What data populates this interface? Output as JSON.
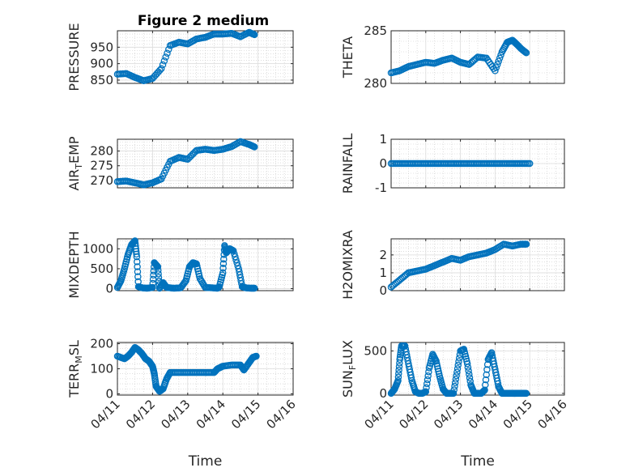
{
  "figure": {
    "title": "Figure 2 medium",
    "background": "#ffffff",
    "marker_color": "#0072bd"
  },
  "chart_data": [
    {
      "name": "pressure",
      "type": "scatter",
      "ylabel": "PRESSURE",
      "ylim": [
        840,
        1000
      ],
      "yticks": [
        850,
        900,
        950
      ],
      "xlim": [
        0,
        5
      ],
      "xticks": [
        0,
        1,
        2,
        3,
        4,
        5
      ],
      "xticklabels": [
        "04/11",
        "04/12",
        "04/13",
        "04/14",
        "04/15",
        "04/16"
      ],
      "xlabel": "",
      "show_xticklabels": false,
      "title": "Figure 2 medium",
      "series": [
        {
          "name": "PRESSURE",
          "x": [
            0,
            0.25,
            0.5,
            0.75,
            1,
            1.25,
            1.5,
            1.75,
            2,
            2.25,
            2.5,
            2.75,
            3,
            3.25,
            3.5,
            3.75,
            3.9
          ],
          "y": [
            868,
            870,
            858,
            848,
            855,
            885,
            955,
            965,
            960,
            975,
            980,
            990,
            990,
            992,
            982,
            995,
            988
          ]
        }
      ]
    },
    {
      "name": "theta",
      "type": "scatter",
      "ylabel": "THETA",
      "ylim": [
        280,
        285
      ],
      "yticks": [
        280,
        285
      ],
      "xlim": [
        0,
        5
      ],
      "xticks": [
        0,
        1,
        2,
        3,
        4,
        5
      ],
      "xticklabels": [
        "04/11",
        "04/12",
        "04/13",
        "04/14",
        "04/15",
        "04/16"
      ],
      "xlabel": "",
      "show_xticklabels": false,
      "series": [
        {
          "name": "THETA",
          "x": [
            0,
            0.25,
            0.5,
            0.75,
            1,
            1.25,
            1.5,
            1.75,
            2,
            2.25,
            2.5,
            2.75,
            3,
            3.2,
            3.35,
            3.5,
            3.6,
            3.75,
            3.9
          ],
          "y": [
            281,
            281.2,
            281.6,
            281.8,
            282,
            281.9,
            282.2,
            282.4,
            282,
            281.8,
            282.5,
            282.4,
            281.2,
            283,
            283.9,
            284.1,
            283.8,
            283.3,
            282.9
          ]
        }
      ]
    },
    {
      "name": "air_temp",
      "type": "scatter",
      "ylabel": "AIR_TEMP",
      "ylim": [
        267.5,
        284
      ],
      "yticks": [
        270,
        275,
        280
      ],
      "xlim": [
        0,
        5
      ],
      "xticks": [
        0,
        1,
        2,
        3,
        4,
        5
      ],
      "xticklabels": [
        "04/11",
        "04/12",
        "04/13",
        "04/14",
        "04/15",
        "04/16"
      ],
      "xlabel": "",
      "show_xticklabels": false,
      "series": [
        {
          "name": "AIR_TEMP",
          "x": [
            0,
            0.25,
            0.5,
            0.75,
            1,
            1.25,
            1.5,
            1.75,
            2,
            2.25,
            2.5,
            2.75,
            3,
            3.25,
            3.5,
            3.75,
            3.9
          ],
          "y": [
            269.6,
            269.8,
            269.2,
            268.5,
            269.2,
            270.5,
            276.5,
            277.8,
            277.2,
            280.2,
            280.6,
            280.2,
            280.6,
            281.5,
            283.2,
            282.2,
            281.4
          ]
        }
      ]
    },
    {
      "name": "rainfall",
      "type": "scatter",
      "ylabel": "RAINFALL",
      "ylim": [
        -1,
        1
      ],
      "yticks": [
        -1,
        0,
        1
      ],
      "xlim": [
        0,
        5
      ],
      "xticks": [
        0,
        1,
        2,
        3,
        4,
        5
      ],
      "xticklabels": [
        "04/11",
        "04/12",
        "04/13",
        "04/14",
        "04/15",
        "04/16"
      ],
      "xlabel": "",
      "show_xticklabels": false,
      "series": [
        {
          "name": "RAINFALL",
          "x": [
            0,
            0.25,
            0.5,
            0.75,
            1,
            1.25,
            1.5,
            1.75,
            2,
            2.25,
            2.5,
            2.75,
            3,
            3.25,
            3.5,
            3.75,
            4
          ],
          "y": [
            0,
            0,
            0,
            0,
            0,
            0,
            0,
            0,
            0,
            0,
            0,
            0,
            0,
            0,
            0,
            0,
            0
          ]
        }
      ]
    },
    {
      "name": "mixdepth",
      "type": "scatter",
      "ylabel": "MIXDEPTH",
      "ylim": [
        -50,
        1250
      ],
      "yticks": [
        0,
        500,
        1000
      ],
      "xlim": [
        0,
        5
      ],
      "xticks": [
        0,
        1,
        2,
        3,
        4,
        5
      ],
      "xticklabels": [
        "04/11",
        "04/12",
        "04/13",
        "04/14",
        "04/15",
        "04/16"
      ],
      "xlabel": "",
      "show_xticklabels": false,
      "series": [
        {
          "name": "MIXDEPTH",
          "x": [
            0,
            0.1,
            0.2,
            0.3,
            0.4,
            0.5,
            0.55,
            0.6,
            0.7,
            0.85,
            1,
            1.05,
            1.15,
            1.2,
            1.3,
            1.4,
            1.6,
            1.8,
            1.95,
            2.05,
            2.15,
            2.25,
            2.35,
            2.5,
            2.7,
            2.85,
            2.9,
            3,
            3.05,
            3.1,
            3.2,
            3.3,
            3.45,
            3.55,
            3.65,
            3.8,
            3.9
          ],
          "y": [
            30,
            200,
            500,
            850,
            1100,
            1200,
            800,
            50,
            20,
            10,
            30,
            650,
            550,
            10,
            150,
            30,
            10,
            20,
            200,
            550,
            650,
            620,
            250,
            30,
            20,
            10,
            50,
            400,
            1080,
            900,
            1000,
            950,
            500,
            50,
            20,
            10,
            10
          ]
        }
      ]
    },
    {
      "name": "h2omixra",
      "type": "scatter",
      "ylabel": "H2OMIXRA",
      "ylim": [
        0,
        2.9
      ],
      "yticks": [
        0,
        1,
        2
      ],
      "xlim": [
        0,
        5
      ],
      "xticks": [
        0,
        1,
        2,
        3,
        4,
        5
      ],
      "xticklabels": [
        "04/11",
        "04/12",
        "04/13",
        "04/14",
        "04/15",
        "04/16"
      ],
      "xlabel": "",
      "show_xticklabels": false,
      "series": [
        {
          "name": "H2OMIXRA",
          "x": [
            0,
            0.25,
            0.5,
            0.75,
            1,
            1.25,
            1.5,
            1.75,
            2,
            2.25,
            2.5,
            2.75,
            3,
            3.25,
            3.5,
            3.75,
            3.9
          ],
          "y": [
            0.2,
            0.6,
            1.0,
            1.1,
            1.2,
            1.4,
            1.6,
            1.8,
            1.7,
            1.9,
            2.0,
            2.1,
            2.3,
            2.6,
            2.5,
            2.6,
            2.6
          ]
        }
      ]
    },
    {
      "name": "terr_msl",
      "type": "scatter",
      "ylabel": "TERR_MSL",
      "ylim": [
        -5,
        205
      ],
      "yticks": [
        0,
        100,
        200
      ],
      "xlim": [
        0,
        5
      ],
      "xticks": [
        0,
        1,
        2,
        3,
        4,
        5
      ],
      "xticklabels": [
        "04/11",
        "04/12",
        "04/13",
        "04/14",
        "04/15",
        "04/16"
      ],
      "xlabel": "Time",
      "show_xticklabels": true,
      "series": [
        {
          "name": "TERR_MSL",
          "x": [
            0,
            0.2,
            0.3,
            0.4,
            0.5,
            0.6,
            0.7,
            0.8,
            0.9,
            1,
            1.05,
            1.1,
            1.2,
            1.3,
            1.4,
            1.5,
            1.75,
            2,
            2.25,
            2.5,
            2.75,
            2.85,
            3,
            3.25,
            3.5,
            3.6,
            3.75,
            3.85,
            3.95
          ],
          "y": [
            150,
            140,
            150,
            165,
            185,
            175,
            160,
            140,
            130,
            110,
            80,
            30,
            10,
            20,
            60,
            85,
            85,
            85,
            85,
            85,
            85,
            100,
            110,
            115,
            115,
            95,
            125,
            145,
            150
          ]
        }
      ]
    },
    {
      "name": "sun_flux",
      "type": "scatter",
      "ylabel": "SUN_FLUX",
      "ylim": [
        -20,
        600
      ],
      "yticks": [
        0,
        500
      ],
      "xlim": [
        0,
        5
      ],
      "xticks": [
        0,
        1,
        2,
        3,
        4,
        5
      ],
      "xticklabels": [
        "04/11",
        "04/12",
        "04/13",
        "04/14",
        "04/15",
        "04/16"
      ],
      "xlabel": "Time",
      "show_xticklabels": true,
      "series": [
        {
          "name": "SUN_FLUX",
          "x": [
            0,
            0.1,
            0.2,
            0.25,
            0.3,
            0.4,
            0.5,
            0.6,
            0.7,
            0.8,
            0.9,
            1,
            1.1,
            1.2,
            1.3,
            1.4,
            1.5,
            1.6,
            1.7,
            1.8,
            1.9,
            2,
            2.1,
            2.2,
            2.3,
            2.4,
            2.5,
            2.6,
            2.7,
            2.8,
            2.9,
            3,
            3.1,
            3.2,
            3.3,
            3.4,
            3.5,
            3.6,
            3.7,
            3.8,
            3.9
          ],
          "y": [
            0,
            50,
            150,
            400,
            560,
            560,
            350,
            150,
            20,
            0,
            0,
            20,
            300,
            460,
            380,
            200,
            50,
            0,
            0,
            0,
            250,
            500,
            520,
            350,
            100,
            0,
            0,
            0,
            40,
            400,
            480,
            280,
            80,
            0,
            0,
            0,
            0,
            0,
            0,
            0,
            0
          ]
        }
      ]
    }
  ]
}
